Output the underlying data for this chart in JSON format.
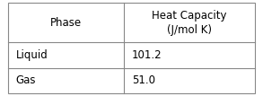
{
  "title_col1": "Phase",
  "title_col2": "Heat Capacity\n(J/mol K)",
  "rows": [
    [
      "Liquid",
      "101.2"
    ],
    [
      "Gas",
      "51.0"
    ]
  ],
  "bg_color": "#ffffff",
  "border_color": "#888888",
  "text_color": "#000000",
  "header_fontsize": 8.5,
  "cell_fontsize": 8.5,
  "col_split": 0.47,
  "fig_width": 2.93,
  "fig_height": 1.07,
  "dpi": 100
}
